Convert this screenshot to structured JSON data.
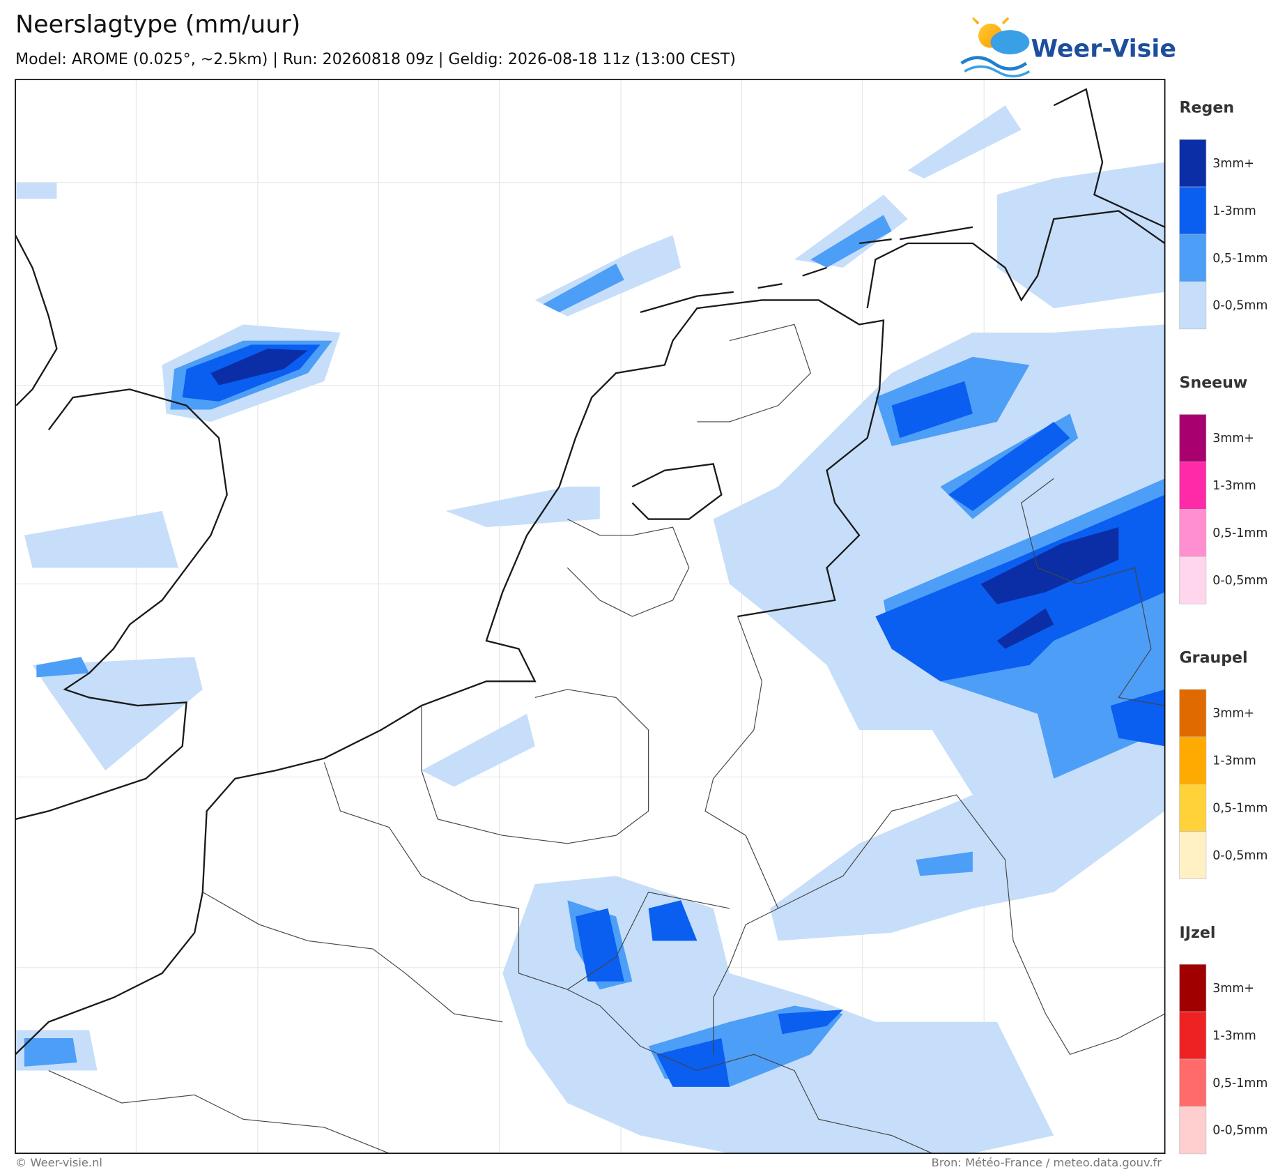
{
  "header": {
    "title": "Neerslagtype (mm/uur)",
    "subtitle": "Model: AROME (0.025°, ~2.5km)  |  Run: 20260818 09z  |  Geldig: 2026-08-18 11z (13:00 CEST)"
  },
  "logo": {
    "text": "Weer-Visie"
  },
  "legend": [
    {
      "title": "Regen",
      "items": [
        {
          "label": "3mm+",
          "color": "#0b2ea6"
        },
        {
          "label": "1-3mm",
          "color": "#0a5ef0"
        },
        {
          "label": "0,5-1mm",
          "color": "#4d9ef7"
        },
        {
          "label": "0-0,5mm",
          "color": "#c6defa"
        }
      ]
    },
    {
      "title": "Sneeuw",
      "items": [
        {
          "label": "3mm+",
          "color": "#a8006e"
        },
        {
          "label": "1-3mm",
          "color": "#ff2aa8"
        },
        {
          "label": "0,5-1mm",
          "color": "#ff8fcf"
        },
        {
          "label": "0-0,5mm",
          "color": "#ffd6ec"
        }
      ]
    },
    {
      "title": "Graupel",
      "items": [
        {
          "label": "3mm+",
          "color": "#e06a00"
        },
        {
          "label": "1-3mm",
          "color": "#ffaa00"
        },
        {
          "label": "0,5-1mm",
          "color": "#ffd23a"
        },
        {
          "label": "0-0,5mm",
          "color": "#fff1c4"
        }
      ]
    },
    {
      "title": "IJzel",
      "items": [
        {
          "label": "3mm+",
          "color": "#a00000"
        },
        {
          "label": "1-3mm",
          "color": "#ee2222"
        },
        {
          "label": "0,5-1mm",
          "color": "#ff6b6b"
        },
        {
          "label": "0-0,5mm",
          "color": "#ffcfcf"
        }
      ]
    }
  ],
  "footer": {
    "left": "© Weer-visie.nl",
    "right": "Bron: Météo-France / meteo.data.gouv.fr"
  }
}
